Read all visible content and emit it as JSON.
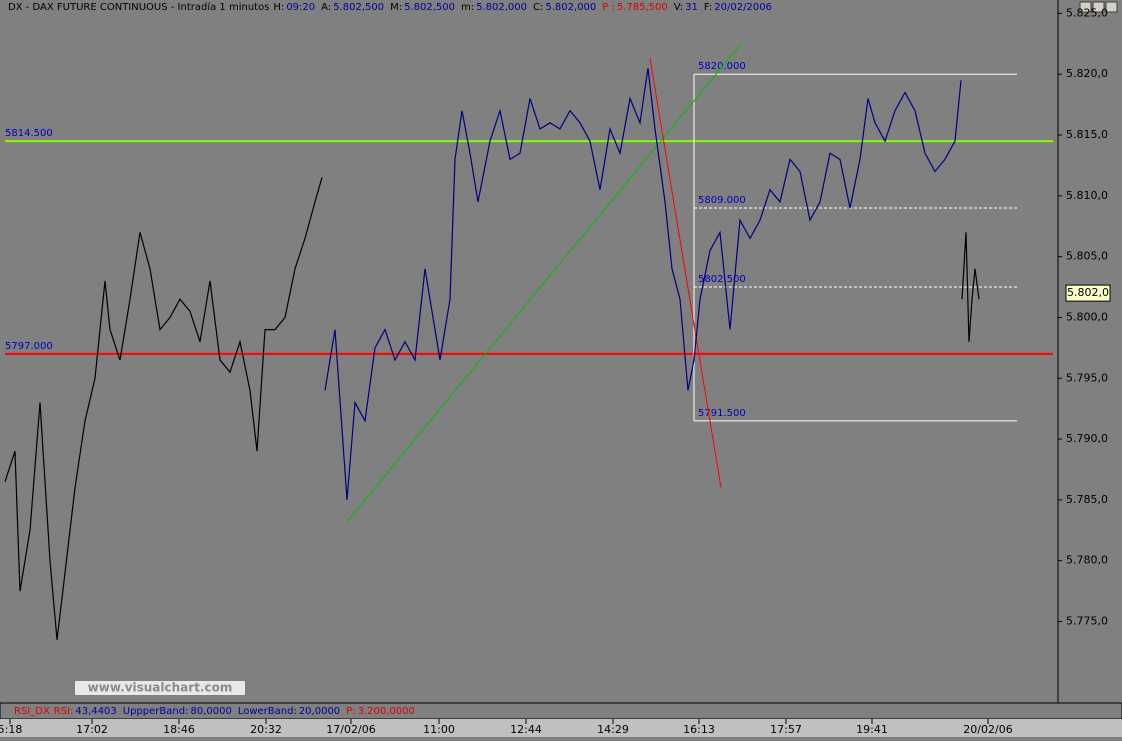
{
  "chart_data": {
    "type": "line",
    "header": [
      "DX - DAX FUTURE CONTINUOUS - Intradía 1 minutos",
      "H:",
      "09:20",
      "A:",
      "5.802,500",
      "M:",
      "5.802,500",
      "m:",
      "5.802,000",
      "C:",
      "5.802,000",
      "P :",
      "5.785,500",
      "V:",
      "31",
      "F:",
      "20/02/2006"
    ],
    "indicator": [
      "RSI_DX",
      "RSI:",
      "43,4403",
      "UppperBand:",
      "80,0000",
      "LowerBand:",
      "20,0000",
      "P:",
      "3.200,0000"
    ],
    "watermark": "www.visualchart.com",
    "x": [
      5,
      15,
      20,
      30,
      40,
      50,
      57,
      65,
      75,
      85,
      95,
      105,
      110,
      120,
      130,
      140,
      150,
      160,
      170,
      180,
      190,
      200,
      210,
      220,
      230,
      240,
      250,
      257,
      265,
      275,
      285,
      295,
      305,
      315,
      322,
      325,
      335,
      347,
      355,
      365,
      375,
      385,
      395,
      405,
      415,
      425,
      435,
      440,
      450,
      455,
      462,
      470,
      478,
      490,
      500,
      510,
      520,
      530,
      540,
      550,
      560,
      570,
      580,
      590,
      600,
      610,
      620,
      630,
      640,
      648,
      655,
      665,
      672,
      680,
      688,
      694,
      700,
      710,
      720,
      730,
      740,
      750,
      760,
      770,
      780,
      790,
      800,
      810,
      820,
      830,
      840,
      850,
      860,
      868,
      875,
      885,
      895,
      905,
      915,
      925,
      935,
      945,
      955,
      961,
      962,
      966,
      969,
      972,
      975,
      979
    ],
    "series": [
      {
        "color": "#000000",
        "values": [
          5786.5,
          5789,
          5777.5,
          5782.5,
          5793,
          5780,
          5773.5,
          5779,
          5786,
          5791.5,
          5795,
          5803,
          5799,
          5796.5,
          5801.5,
          5807,
          5804,
          5799,
          5800,
          5801.5,
          5800.5,
          5798,
          5803,
          5796.5,
          5795.5,
          5798,
          5794,
          5789,
          5799,
          5799,
          5800,
          5804,
          5806.5,
          5809.5,
          5811.5,
          null,
          null,
          null,
          null,
          null,
          null,
          null,
          null,
          null,
          null,
          null,
          null,
          null,
          null,
          null,
          null,
          null,
          null,
          null,
          null,
          null,
          null,
          null,
          null,
          null,
          null,
          null,
          null,
          null,
          null,
          null,
          null,
          null,
          null,
          null,
          null,
          null,
          null,
          null,
          null,
          null,
          null,
          null,
          null,
          null,
          null,
          null,
          null,
          null,
          null,
          null,
          null,
          null,
          null,
          null,
          null,
          null,
          null,
          null,
          null,
          null,
          null,
          null,
          null,
          null,
          null,
          null,
          null,
          null,
          null,
          null,
          null,
          null,
          null,
          null
        ]
      },
      {
        "color": "#000080",
        "values": [
          null,
          null,
          null,
          null,
          null,
          null,
          null,
          null,
          null,
          null,
          null,
          null,
          null,
          null,
          null,
          null,
          null,
          null,
          null,
          null,
          null,
          null,
          null,
          null,
          null,
          null,
          null,
          null,
          null,
          null,
          null,
          null,
          null,
          null,
          null,
          5794,
          5799,
          5785,
          5793,
          5791.5,
          5797.5,
          5799,
          5796.5,
          5798,
          5796.5,
          5804,
          5799,
          5796.5,
          5801.5,
          5813,
          5817,
          5813.5,
          5809.5,
          5814.5,
          5817,
          5813,
          5813.5,
          5818,
          5815.5,
          5816,
          5815.5,
          5817,
          5816,
          5814.5,
          5810.5,
          5815.5,
          5813.5,
          5818,
          5816,
          5820.5,
          5815.5,
          5809.5,
          5804,
          5801.5,
          5794,
          5796.5,
          5801.5,
          5805.5,
          5807,
          5799,
          5808,
          5806.5,
          5808,
          5810.5,
          5809.5,
          5813,
          5812,
          5808,
          5809.5,
          5813.5,
          5813,
          5809,
          5813,
          5818,
          5816,
          5814.5,
          5817,
          5818.5,
          5817,
          5813.5,
          5812,
          5813,
          5814.5,
          5819.5,
          null,
          null,
          null,
          null,
          null,
          null
        ]
      },
      {
        "color": "#000000",
        "values": [
          null,
          null,
          null,
          null,
          null,
          null,
          null,
          null,
          null,
          null,
          null,
          null,
          null,
          null,
          null,
          null,
          null,
          null,
          null,
          null,
          null,
          null,
          null,
          null,
          null,
          null,
          null,
          null,
          null,
          null,
          null,
          null,
          null,
          null,
          null,
          null,
          null,
          null,
          null,
          null,
          null,
          null,
          null,
          null,
          null,
          null,
          null,
          null,
          null,
          null,
          null,
          null,
          null,
          null,
          null,
          null,
          null,
          null,
          null,
          null,
          null,
          null,
          null,
          null,
          null,
          null,
          null,
          null,
          null,
          null,
          null,
          null,
          null,
          null,
          null,
          null,
          null,
          null,
          null,
          null,
          null,
          null,
          null,
          null,
          null,
          null,
          null,
          null,
          null,
          null,
          null,
          null,
          null,
          null,
          null,
          null,
          null,
          null,
          null,
          null,
          null,
          null,
          null,
          null,
          5801.5,
          5807,
          5798,
          5801.5,
          5804,
          5801.5
        ]
      }
    ],
    "xlim": [
      0,
      1058
    ],
    "ylim": [
      5768.3,
      5826.1
    ],
    "xticks": [
      {
        "value": 10,
        "label": "5:18"
      },
      {
        "value": 92,
        "label": "17:02"
      },
      {
        "value": 179,
        "label": "18:46"
      },
      {
        "value": 266,
        "label": "20:32"
      },
      {
        "value": 351,
        "label": "17/02/06"
      },
      {
        "value": 439,
        "label": "11:00"
      },
      {
        "value": 526,
        "label": "12:44"
      },
      {
        "value": 613,
        "label": "14:29"
      },
      {
        "value": 699,
        "label": "16:13"
      },
      {
        "value": 786,
        "label": "17:57"
      },
      {
        "value": 872,
        "label": "19:41"
      },
      {
        "value": 988,
        "label": "20/02/06"
      }
    ],
    "yticks": [
      {
        "value": 5775,
        "label": "5.775,0"
      },
      {
        "value": 5780,
        "label": "5.780,0"
      },
      {
        "value": 5785,
        "label": "5.785,0"
      },
      {
        "value": 5790,
        "label": "5.790,0"
      },
      {
        "value": 5795,
        "label": "5.795,0"
      },
      {
        "value": 5800,
        "label": "5.800,0"
      },
      {
        "value": 5805,
        "label": "5.805,0"
      },
      {
        "value": 5810,
        "label": "5.810,0"
      },
      {
        "value": 5815,
        "label": "5.815,0"
      },
      {
        "value": 5820,
        "label": "5.820,0"
      },
      {
        "value": 5825,
        "label": "5.825,0"
      }
    ],
    "hlines": [
      {
        "value": 5814.5,
        "label": "5814.500",
        "color": "#80ff00"
      },
      {
        "value": 5797,
        "label": "5797.000",
        "color": "#ff0000"
      }
    ],
    "box": {
      "x": [
        694,
        1017
      ],
      "top": {
        "value": 5820,
        "label": "5820.000"
      },
      "bottom": {
        "value": 5791.5,
        "label": "5791.500"
      },
      "levels": [
        {
          "value": 5809,
          "label": "5809.000"
        },
        {
          "value": 5802.5,
          "label": "5802.500"
        }
      ]
    },
    "trendlines": [
      {
        "x": [
          347,
          740
        ],
        "y": [
          5783.2,
          5822.4
        ],
        "color": "#00c000"
      },
      {
        "x": [
          650,
          721
        ],
        "y": [
          5821.3,
          5786
        ],
        "color": "#ff0000"
      }
    ],
    "last_price": {
      "value": 5802,
      "label": "5.802,0"
    }
  }
}
